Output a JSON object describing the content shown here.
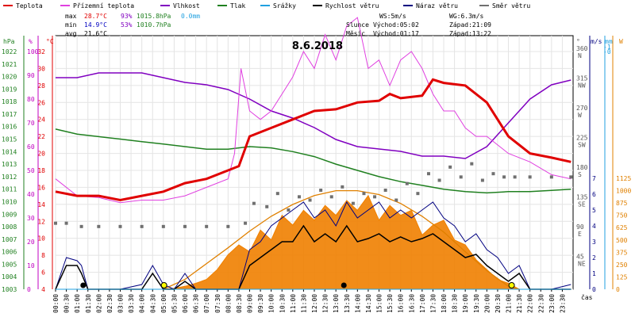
{
  "chart_data": {
    "type": "line",
    "title": "8.6.2018",
    "xlabel": "čas",
    "x_ticks": [
      "00:00",
      "00:30",
      "01:00",
      "01:30",
      "02:00",
      "02:30",
      "03:00",
      "03:30",
      "04:00",
      "04:30",
      "05:00",
      "05:30",
      "06:00",
      "06:30",
      "07:00",
      "07:30",
      "08:00",
      "08:30",
      "09:00",
      "09:30",
      "10:00",
      "10:30",
      "11:00",
      "11:30",
      "12:00",
      "12:30",
      "13:00",
      "13:30",
      "14:00",
      "14:30",
      "15:00",
      "15:30",
      "16:00",
      "16:30",
      "17:00",
      "17:30",
      "18:00",
      "18:30",
      "19:00",
      "19:30",
      "20:00",
      "20:30",
      "21:00",
      "21:30",
      "22:00",
      "22:30",
      "23:00",
      "23:30"
    ],
    "legend": [
      {
        "label": "Teplota",
        "color": "#e00000"
      },
      {
        "label": "Přízemní teplota",
        "color": "#e040e0"
      },
      {
        "label": "Vlhkost",
        "color": "#8000c0"
      },
      {
        "label": "Tlak",
        "color": "#208020"
      },
      {
        "label": "Srážky",
        "color": "#20a0e0"
      },
      {
        "label": "Rychlost větru",
        "color": "#000000"
      },
      {
        "label": "Náraz větru",
        "color": "#000080"
      },
      {
        "label": "Směr větru",
        "color": "#707070"
      }
    ],
    "stats": {
      "max_label": "max",
      "min_label": "min",
      "avg_label": "avg",
      "max_temp": "28.7°C",
      "max_hum": "93%",
      "max_press": "1015.8hPa",
      "max_rain": "0.0mm",
      "min_temp": "14.9°C",
      "min_hum": "53%",
      "min_press": "1010.7hPa",
      "avg_temp": "21.6°C"
    },
    "info": {
      "ws": "WS:5m/s",
      "wg": "WG:6.3m/s",
      "sun_label": "Slunce",
      "sunrise": "Východ:05:02",
      "sunset": "Západ:21:09",
      "moon_label": "Měsíc",
      "moonrise": "Východ:01:17",
      "moonset": "Západ:13:22"
    },
    "axes": {
      "hpa_label": "hPa",
      "pct_label": "%",
      "c_label": "°C",
      "deg_label": "°",
      "ms_label": "m/s",
      "mm_label": "mm",
      "w_label": "W",
      "hpa_ticks": [
        1003,
        1004,
        1005,
        1006,
        1007,
        1008,
        1009,
        1010,
        1011,
        1012,
        1013,
        1014,
        1015,
        1016,
        1017,
        1018,
        1019,
        1020,
        1021,
        1022
      ],
      "pct_ticks": [
        0,
        10,
        20,
        30,
        40,
        50,
        60,
        70,
        80,
        90,
        100
      ],
      "c_ticks": [
        4,
        6,
        8,
        10,
        12,
        14,
        16,
        18,
        20,
        22,
        24,
        26,
        28,
        30,
        32
      ],
      "dir_ticks": [
        {
          "v": 45,
          "t": "NE"
        },
        {
          "v": 90,
          "t": "E"
        },
        {
          "v": 135,
          "t": "SE"
        },
        {
          "v": 180,
          "t": "S"
        },
        {
          "v": 225,
          "t": "SW"
        },
        {
          "v": 270,
          "t": "W"
        },
        {
          "v": 315,
          "t": "NW"
        },
        {
          "v": 360,
          "t": "N"
        }
      ],
      "ms_ticks": [
        0,
        1,
        2,
        3,
        4,
        5,
        6,
        7
      ],
      "mm_ticks": [
        "-0",
        "-1"
      ],
      "w_ticks": [
        0,
        125,
        250,
        375,
        500,
        625,
        750,
        875,
        1000,
        1125
      ]
    },
    "temperature": {
      "x": [
        0,
        1,
        2,
        3,
        4,
        5,
        6,
        7,
        8,
        8.5,
        9,
        10,
        11,
        12,
        13,
        14,
        15,
        15.5,
        16,
        17,
        17.5,
        18,
        19,
        20,
        20.5,
        21,
        22,
        23,
        23.9
      ],
      "y": [
        15.5,
        15,
        15,
        14.5,
        15,
        15.5,
        16.5,
        17,
        18,
        18.5,
        22,
        23,
        24,
        25,
        25.2,
        26,
        26.2,
        27,
        26.5,
        26.8,
        28.7,
        28.3,
        28,
        26,
        24,
        22,
        20,
        19.5,
        19
      ]
    },
    "ground_temperature": {
      "x": [
        0,
        1,
        2,
        3,
        4,
        5,
        6,
        7,
        8,
        8.3,
        8.6,
        9,
        9.5,
        10,
        10.5,
        11,
        11.5,
        12,
        12.5,
        13,
        13.5,
        14,
        14.5,
        15,
        15.5,
        16,
        16.5,
        17,
        17.5,
        18,
        18.5,
        19,
        19.5,
        20,
        21,
        22,
        23,
        23.9
      ],
      "y": [
        17,
        15,
        14.8,
        14.2,
        14.5,
        14.5,
        15,
        16,
        17,
        20,
        30,
        25,
        24,
        25,
        27,
        29,
        32,
        30,
        34,
        31,
        35,
        36,
        30,
        31,
        28,
        31,
        32,
        30,
        27,
        25,
        25,
        23,
        22,
        22,
        20,
        19,
        17.5,
        17
      ]
    },
    "humidity": {
      "x": [
        0,
        1,
        2,
        3,
        4,
        5,
        6,
        7,
        8,
        9,
        10,
        11,
        12,
        13,
        14,
        15,
        16,
        17,
        18,
        19,
        20,
        21,
        22,
        23,
        23.9
      ],
      "y": [
        89,
        89,
        91,
        91,
        91,
        89,
        87,
        86,
        84,
        80,
        75,
        72,
        68,
        63,
        60,
        59,
        58,
        56,
        56,
        55,
        60,
        70,
        80,
        86,
        88
      ]
    },
    "pressure": {
      "x": [
        0,
        1,
        2,
        3,
        4,
        5,
        6,
        7,
        8,
        9,
        10,
        11,
        12,
        13,
        14,
        15,
        16,
        17,
        18,
        19,
        20,
        21,
        22,
        23,
        23.9
      ],
      "y": [
        1015.8,
        1015.4,
        1015.2,
        1015,
        1014.8,
        1014.6,
        1014.4,
        1014.2,
        1014.2,
        1014.4,
        1014.3,
        1014,
        1013.6,
        1013,
        1012.5,
        1012,
        1011.6,
        1011.3,
        1011,
        1010.8,
        1010.7,
        1010.8,
        1010.8,
        1010.9,
        1011
      ]
    },
    "wind_speed": {
      "x": [
        0,
        0.5,
        1,
        1.2,
        1.5,
        2,
        3,
        4,
        4.5,
        5,
        5.5,
        6,
        6.5,
        7,
        7.5,
        8,
        8.5,
        9,
        9.5,
        10,
        10.5,
        11,
        11.5,
        12,
        12.5,
        13,
        13.5,
        14,
        14.5,
        15,
        15.5,
        16,
        16.5,
        17,
        17.5,
        18,
        18.5,
        19,
        19.5,
        20,
        20.5,
        21,
        21.5,
        22,
        23,
        23.9
      ],
      "y": [
        0,
        1.5,
        1.5,
        1,
        0,
        0,
        0,
        0,
        1,
        0,
        0,
        0.5,
        0,
        0,
        0,
        0,
        0,
        1.5,
        2,
        2.5,
        3,
        3,
        4,
        3,
        3.5,
        3,
        4,
        3,
        3.2,
        3.5,
        3,
        3.3,
        3,
        3.2,
        3.5,
        3,
        2.5,
        2,
        2.2,
        1.5,
        1,
        0.5,
        1,
        0,
        0,
        0
      ]
    },
    "wind_gust": {
      "x": [
        0,
        0.5,
        1,
        1.2,
        1.5,
        2,
        3,
        4,
        4.5,
        5,
        5.5,
        6,
        6.5,
        7,
        7.5,
        8,
        8.5,
        9,
        9.5,
        10,
        10.5,
        11,
        11.5,
        12,
        12.5,
        13,
        13.5,
        14,
        14.5,
        15,
        15.5,
        16,
        16.5,
        17,
        17.5,
        18,
        18.5,
        19,
        19.5,
        20,
        20.5,
        21,
        21.5,
        22,
        23,
        23.9
      ],
      "y": [
        0,
        2,
        1.8,
        1.5,
        0,
        0,
        0,
        0.3,
        1.5,
        0.3,
        0,
        1,
        0,
        0,
        0,
        0,
        0,
        2.5,
        3,
        4,
        4.5,
        5,
        5.5,
        4.5,
        5,
        4,
        5.5,
        4.5,
        5,
        5.5,
        4.5,
        5,
        4.5,
        5,
        5.5,
        4.5,
        4,
        3,
        3.5,
        2.5,
        2,
        1,
        1.5,
        0,
        0,
        0.3
      ]
    },
    "wind_direction": {
      "x": [
        0,
        0.5,
        1.2,
        2,
        3,
        4,
        5,
        6,
        7,
        8,
        8.8,
        9.2,
        9.8,
        10.3,
        10.8,
        11.3,
        11.8,
        12.3,
        12.8,
        13.3,
        13.8,
        14.3,
        14.8,
        15.3,
        15.8,
        16.3,
        16.8,
        17.3,
        17.8,
        18.3,
        18.8,
        19.3,
        19.8,
        20.3,
        20.8,
        21.3,
        22,
        23,
        23.9
      ],
      "y": [
        100,
        100,
        95,
        95,
        95,
        95,
        95,
        95,
        95,
        95,
        100,
        130,
        125,
        145,
        120,
        140,
        135,
        150,
        140,
        155,
        130,
        145,
        140,
        150,
        135,
        160,
        145,
        175,
        165,
        185,
        170,
        190,
        165,
        175,
        170,
        170,
        170,
        170,
        170
      ]
    },
    "solar_radiation": {
      "x": [
        0,
        5,
        5.5,
        6,
        6.5,
        7,
        7.5,
        8,
        8.5,
        9,
        9.5,
        10,
        10.5,
        11,
        11.5,
        12,
        12.5,
        13,
        13.5,
        14,
        14.5,
        15,
        15.5,
        16,
        16.5,
        17,
        17.5,
        18,
        18.5,
        19,
        19.5,
        20,
        20.5,
        21,
        21.5,
        23.9
      ],
      "y": [
        0,
        0,
        10,
        30,
        60,
        100,
        200,
        350,
        450,
        380,
        600,
        500,
        750,
        650,
        800,
        700,
        850,
        750,
        900,
        800,
        950,
        700,
        850,
        750,
        800,
        550,
        650,
        700,
        500,
        450,
        300,
        200,
        100,
        60,
        0,
        0
      ]
    },
    "solar_max": {
      "x": [
        5,
        6,
        7,
        8,
        9,
        10,
        11,
        12,
        13,
        14,
        15,
        16,
        17,
        18,
        19,
        20,
        21,
        21.5
      ],
      "y": [
        0,
        100,
        260,
        420,
        590,
        740,
        860,
        950,
        1000,
        1000,
        960,
        870,
        740,
        580,
        380,
        190,
        30,
        0
      ]
    },
    "rain": {
      "x": [
        0,
        23.9
      ],
      "y": [
        0,
        0
      ]
    }
  }
}
